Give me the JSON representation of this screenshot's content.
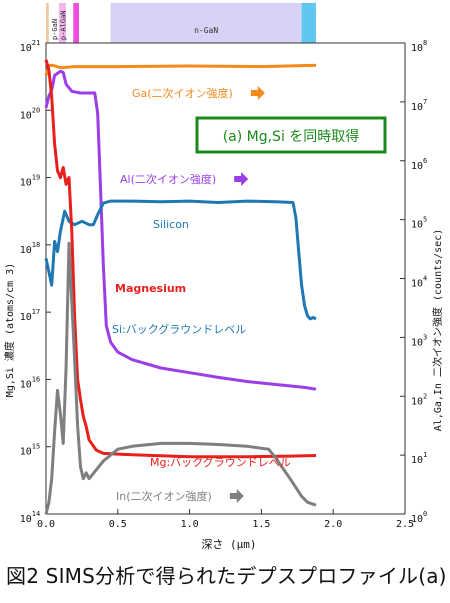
{
  "caption": "図2  SIMS分析で得られたデプスプロファイル(a)",
  "layers": [
    {
      "name": "",
      "from": 0.0,
      "to": 0.02,
      "color": "#f2c9a0"
    },
    {
      "name": "p-GaN",
      "from": 0.02,
      "to": 0.09,
      "color": "#ffffff"
    },
    {
      "name": "p-AlGaN",
      "from": 0.09,
      "to": 0.14,
      "color": "#f3b7ee"
    },
    {
      "name": "",
      "from": 0.14,
      "to": 0.19,
      "color": "#ffffff"
    },
    {
      "name": "",
      "from": 0.19,
      "to": 0.23,
      "color": "#ee4fdc"
    },
    {
      "name": "",
      "from": 0.23,
      "to": 0.45,
      "color": "#ffffff"
    },
    {
      "name": "n-GaN",
      "from": 0.45,
      "to": 1.78,
      "color": "#d6d3f6"
    },
    {
      "name": "",
      "from": 1.78,
      "to": 1.88,
      "color": "#5ec6ef"
    },
    {
      "name": "",
      "from": 1.88,
      "to": 2.5,
      "color": "#ffffff"
    }
  ],
  "legend_box": {
    "text": "(a)  Mg,Si を同時取得",
    "border_color": "#1a8a1a",
    "text_color": "#1a8a1a"
  },
  "chart_data": {
    "type": "line",
    "xlabel": "深さ (μm)",
    "ylabel_left": "Mg,Si 濃度 (atoms/cm 3)",
    "ylabel_right": "Al,Ga,In 二次イオン強度 (counts/sec)",
    "xlim": [
      0,
      2.5
    ],
    "ylim_left": [
      14,
      21
    ],
    "ylim_right": [
      0,
      8
    ],
    "yscale": "log",
    "grid": false,
    "x_ticks": [
      "0.0",
      "0.5",
      "1.0",
      "1.5",
      "2.0",
      "2.5"
    ],
    "y_left_ticks": [
      {
        "base": "10",
        "exp": "14"
      },
      {
        "base": "10",
        "exp": "15"
      },
      {
        "base": "10",
        "exp": "16"
      },
      {
        "base": "10",
        "exp": "17"
      },
      {
        "base": "10",
        "exp": "18"
      },
      {
        "base": "10",
        "exp": "19"
      },
      {
        "base": "10",
        "exp": "20"
      },
      {
        "base": "10",
        "exp": "21"
      }
    ],
    "y_right_ticks": [
      {
        "base": "10",
        "exp": "0"
      },
      {
        "base": "10",
        "exp": "1"
      },
      {
        "base": "10",
        "exp": "2"
      },
      {
        "base": "10",
        "exp": "3"
      },
      {
        "base": "10",
        "exp": "4"
      },
      {
        "base": "10",
        "exp": "5"
      },
      {
        "base": "10",
        "exp": "6"
      },
      {
        "base": "10",
        "exp": "7"
      },
      {
        "base": "10",
        "exp": "8"
      }
    ],
    "series": [
      {
        "name": "Ga(二次イオン強度)",
        "axis": "right",
        "color": "#f28a1e",
        "points": [
          [
            0.0,
            7.45
          ],
          [
            0.02,
            7.62
          ],
          [
            0.05,
            7.62
          ],
          [
            0.1,
            7.58
          ],
          [
            0.2,
            7.6
          ],
          [
            0.3,
            7.6
          ],
          [
            0.5,
            7.6
          ],
          [
            1.0,
            7.61
          ],
          [
            1.5,
            7.6
          ],
          [
            1.85,
            7.62
          ],
          [
            1.88,
            7.62
          ]
        ]
      },
      {
        "name": "Al(二次イオン強度)",
        "axis": "right",
        "color": "#9b3ee8",
        "points": [
          [
            0.0,
            6.9
          ],
          [
            0.02,
            7.1
          ],
          [
            0.04,
            7.2
          ],
          [
            0.06,
            7.45
          ],
          [
            0.1,
            7.52
          ],
          [
            0.12,
            7.5
          ],
          [
            0.14,
            7.3
          ],
          [
            0.18,
            7.18
          ],
          [
            0.24,
            7.15
          ],
          [
            0.34,
            7.15
          ],
          [
            0.36,
            6.8
          ],
          [
            0.38,
            5.5
          ],
          [
            0.4,
            4.2
          ],
          [
            0.42,
            3.2
          ],
          [
            0.45,
            2.92
          ],
          [
            0.5,
            2.75
          ],
          [
            0.6,
            2.62
          ],
          [
            0.8,
            2.48
          ],
          [
            1.0,
            2.4
          ],
          [
            1.2,
            2.32
          ],
          [
            1.4,
            2.25
          ],
          [
            1.6,
            2.2
          ],
          [
            1.8,
            2.15
          ],
          [
            1.88,
            2.12
          ]
        ]
      },
      {
        "name": "Silicon",
        "axis": "left",
        "color": "#1f78b4",
        "points": [
          [
            0.0,
            17.8
          ],
          [
            0.02,
            17.6
          ],
          [
            0.04,
            17.4
          ],
          [
            0.06,
            18.05
          ],
          [
            0.08,
            17.9
          ],
          [
            0.1,
            18.2
          ],
          [
            0.13,
            18.5
          ],
          [
            0.16,
            18.35
          ],
          [
            0.2,
            18.3
          ],
          [
            0.25,
            18.35
          ],
          [
            0.3,
            18.3
          ],
          [
            0.33,
            18.3
          ],
          [
            0.36,
            18.45
          ],
          [
            0.4,
            18.62
          ],
          [
            0.45,
            18.65
          ],
          [
            0.6,
            18.65
          ],
          [
            0.8,
            18.64
          ],
          [
            1.0,
            18.65
          ],
          [
            1.2,
            18.63
          ],
          [
            1.4,
            18.65
          ],
          [
            1.6,
            18.64
          ],
          [
            1.72,
            18.63
          ],
          [
            1.74,
            18.4
          ],
          [
            1.76,
            17.9
          ],
          [
            1.78,
            17.4
          ],
          [
            1.8,
            17.1
          ],
          [
            1.82,
            16.95
          ],
          [
            1.84,
            16.9
          ],
          [
            1.86,
            16.92
          ],
          [
            1.88,
            16.9
          ]
        ]
      },
      {
        "name": "Magnesium",
        "axis": "left",
        "color": "#e8201c",
        "points": [
          [
            0.0,
            20.75
          ],
          [
            0.02,
            20.6
          ],
          [
            0.04,
            20.2
          ],
          [
            0.06,
            19.5
          ],
          [
            0.08,
            19.1
          ],
          [
            0.1,
            19.0
          ],
          [
            0.12,
            19.15
          ],
          [
            0.14,
            18.9
          ],
          [
            0.16,
            19.0
          ],
          [
            0.18,
            18.2
          ],
          [
            0.2,
            16.9
          ],
          [
            0.22,
            16.0
          ],
          [
            0.24,
            15.7
          ],
          [
            0.26,
            15.45
          ],
          [
            0.28,
            15.3
          ],
          [
            0.3,
            15.1
          ],
          [
            0.35,
            14.95
          ],
          [
            0.4,
            14.9
          ],
          [
            0.6,
            14.88
          ],
          [
            1.0,
            14.85
          ],
          [
            1.4,
            14.85
          ],
          [
            1.7,
            14.86
          ],
          [
            1.88,
            14.87
          ]
        ]
      },
      {
        "name": "In(二次イオン強度)",
        "axis": "right",
        "color": "#7f7f7f",
        "points": [
          [
            0.0,
            0.0
          ],
          [
            0.02,
            0.2
          ],
          [
            0.04,
            0.6
          ],
          [
            0.06,
            1.4
          ],
          [
            0.08,
            2.1
          ],
          [
            0.1,
            1.7
          ],
          [
            0.12,
            1.2
          ],
          [
            0.14,
            2.5
          ],
          [
            0.16,
            4.6
          ],
          [
            0.18,
            3.6
          ],
          [
            0.2,
            2.6
          ],
          [
            0.22,
            1.5
          ],
          [
            0.24,
            0.8
          ],
          [
            0.26,
            0.6
          ],
          [
            0.28,
            0.7
          ],
          [
            0.3,
            0.6
          ],
          [
            0.35,
            0.75
          ],
          [
            0.4,
            0.9
          ],
          [
            0.5,
            1.1
          ],
          [
            0.6,
            1.15
          ],
          [
            0.8,
            1.2
          ],
          [
            1.0,
            1.2
          ],
          [
            1.2,
            1.18
          ],
          [
            1.4,
            1.15
          ],
          [
            1.55,
            1.1
          ],
          [
            1.6,
            0.95
          ],
          [
            1.7,
            0.6
          ],
          [
            1.78,
            0.3
          ],
          [
            1.82,
            0.2
          ],
          [
            1.88,
            0.15
          ]
        ]
      }
    ],
    "annotations": [
      {
        "text": "Ga(二次イオン強度)",
        "color": "#f28a1e",
        "arrow": true
      },
      {
        "text": "Al(二次イオン強度)",
        "color": "#9b3ee8",
        "arrow": true
      },
      {
        "text": "Silicon",
        "color": "#1f78b4",
        "arrow": false
      },
      {
        "text": "Magnesium",
        "color": "#e8201c",
        "arrow": false
      },
      {
        "text": "Si:バックグラウンドレベル",
        "color": "#1f78b4",
        "arrow": false
      },
      {
        "text": "Mg:バックグラウンドレベル",
        "color": "#e8201c",
        "arrow": false
      },
      {
        "text": "In(二次イオン強度)",
        "color": "#7f7f7f",
        "arrow": true
      }
    ]
  }
}
